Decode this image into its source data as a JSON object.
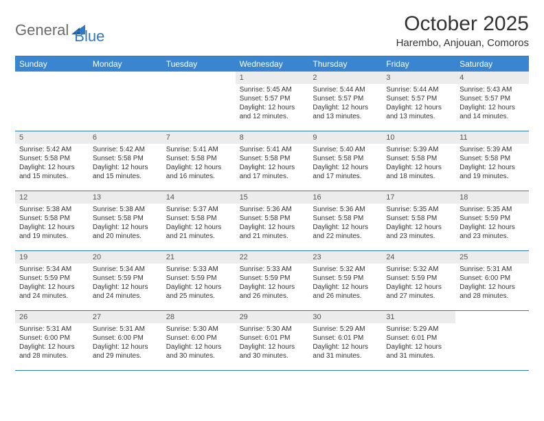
{
  "logo": {
    "word1": "General",
    "word2": "Blue"
  },
  "title": "October 2025",
  "location": "Harembo, Anjouan, Comoros",
  "colors": {
    "header_bar": "#3a85d0",
    "rule": "#2f78c3",
    "daynum_bg": "#ececec",
    "text": "#333333",
    "logo_gray": "#6a6a6a",
    "logo_blue": "#2f78c3",
    "bg": "#ffffff"
  },
  "typography": {
    "title_fontsize": 30,
    "location_fontsize": 15,
    "dow_fontsize": 12,
    "daynum_fontsize": 11,
    "body_fontsize": 10
  },
  "days_of_week": [
    "Sunday",
    "Monday",
    "Tuesday",
    "Wednesday",
    "Thursday",
    "Friday",
    "Saturday"
  ],
  "weeks": [
    [
      {
        "empty": true
      },
      {
        "empty": true
      },
      {
        "empty": true
      },
      {
        "n": "1",
        "sunrise": "Sunrise: 5:45 AM",
        "sunset": "Sunset: 5:57 PM",
        "day1": "Daylight: 12 hours",
        "day2": "and 12 minutes."
      },
      {
        "n": "2",
        "sunrise": "Sunrise: 5:44 AM",
        "sunset": "Sunset: 5:57 PM",
        "day1": "Daylight: 12 hours",
        "day2": "and 13 minutes."
      },
      {
        "n": "3",
        "sunrise": "Sunrise: 5:44 AM",
        "sunset": "Sunset: 5:57 PM",
        "day1": "Daylight: 12 hours",
        "day2": "and 13 minutes."
      },
      {
        "n": "4",
        "sunrise": "Sunrise: 5:43 AM",
        "sunset": "Sunset: 5:57 PM",
        "day1": "Daylight: 12 hours",
        "day2": "and 14 minutes."
      }
    ],
    [
      {
        "n": "5",
        "sunrise": "Sunrise: 5:42 AM",
        "sunset": "Sunset: 5:58 PM",
        "day1": "Daylight: 12 hours",
        "day2": "and 15 minutes."
      },
      {
        "n": "6",
        "sunrise": "Sunrise: 5:42 AM",
        "sunset": "Sunset: 5:58 PM",
        "day1": "Daylight: 12 hours",
        "day2": "and 15 minutes."
      },
      {
        "n": "7",
        "sunrise": "Sunrise: 5:41 AM",
        "sunset": "Sunset: 5:58 PM",
        "day1": "Daylight: 12 hours",
        "day2": "and 16 minutes."
      },
      {
        "n": "8",
        "sunrise": "Sunrise: 5:41 AM",
        "sunset": "Sunset: 5:58 PM",
        "day1": "Daylight: 12 hours",
        "day2": "and 17 minutes."
      },
      {
        "n": "9",
        "sunrise": "Sunrise: 5:40 AM",
        "sunset": "Sunset: 5:58 PM",
        "day1": "Daylight: 12 hours",
        "day2": "and 17 minutes."
      },
      {
        "n": "10",
        "sunrise": "Sunrise: 5:39 AM",
        "sunset": "Sunset: 5:58 PM",
        "day1": "Daylight: 12 hours",
        "day2": "and 18 minutes."
      },
      {
        "n": "11",
        "sunrise": "Sunrise: 5:39 AM",
        "sunset": "Sunset: 5:58 PM",
        "day1": "Daylight: 12 hours",
        "day2": "and 19 minutes."
      }
    ],
    [
      {
        "n": "12",
        "sunrise": "Sunrise: 5:38 AM",
        "sunset": "Sunset: 5:58 PM",
        "day1": "Daylight: 12 hours",
        "day2": "and 19 minutes."
      },
      {
        "n": "13",
        "sunrise": "Sunrise: 5:38 AM",
        "sunset": "Sunset: 5:58 PM",
        "day1": "Daylight: 12 hours",
        "day2": "and 20 minutes."
      },
      {
        "n": "14",
        "sunrise": "Sunrise: 5:37 AM",
        "sunset": "Sunset: 5:58 PM",
        "day1": "Daylight: 12 hours",
        "day2": "and 21 minutes."
      },
      {
        "n": "15",
        "sunrise": "Sunrise: 5:36 AM",
        "sunset": "Sunset: 5:58 PM",
        "day1": "Daylight: 12 hours",
        "day2": "and 21 minutes."
      },
      {
        "n": "16",
        "sunrise": "Sunrise: 5:36 AM",
        "sunset": "Sunset: 5:58 PM",
        "day1": "Daylight: 12 hours",
        "day2": "and 22 minutes."
      },
      {
        "n": "17",
        "sunrise": "Sunrise: 5:35 AM",
        "sunset": "Sunset: 5:58 PM",
        "day1": "Daylight: 12 hours",
        "day2": "and 23 minutes."
      },
      {
        "n": "18",
        "sunrise": "Sunrise: 5:35 AM",
        "sunset": "Sunset: 5:59 PM",
        "day1": "Daylight: 12 hours",
        "day2": "and 23 minutes."
      }
    ],
    [
      {
        "n": "19",
        "sunrise": "Sunrise: 5:34 AM",
        "sunset": "Sunset: 5:59 PM",
        "day1": "Daylight: 12 hours",
        "day2": "and 24 minutes."
      },
      {
        "n": "20",
        "sunrise": "Sunrise: 5:34 AM",
        "sunset": "Sunset: 5:59 PM",
        "day1": "Daylight: 12 hours",
        "day2": "and 24 minutes."
      },
      {
        "n": "21",
        "sunrise": "Sunrise: 5:33 AM",
        "sunset": "Sunset: 5:59 PM",
        "day1": "Daylight: 12 hours",
        "day2": "and 25 minutes."
      },
      {
        "n": "22",
        "sunrise": "Sunrise: 5:33 AM",
        "sunset": "Sunset: 5:59 PM",
        "day1": "Daylight: 12 hours",
        "day2": "and 26 minutes."
      },
      {
        "n": "23",
        "sunrise": "Sunrise: 5:32 AM",
        "sunset": "Sunset: 5:59 PM",
        "day1": "Daylight: 12 hours",
        "day2": "and 26 minutes."
      },
      {
        "n": "24",
        "sunrise": "Sunrise: 5:32 AM",
        "sunset": "Sunset: 5:59 PM",
        "day1": "Daylight: 12 hours",
        "day2": "and 27 minutes."
      },
      {
        "n": "25",
        "sunrise": "Sunrise: 5:31 AM",
        "sunset": "Sunset: 6:00 PM",
        "day1": "Daylight: 12 hours",
        "day2": "and 28 minutes."
      }
    ],
    [
      {
        "n": "26",
        "sunrise": "Sunrise: 5:31 AM",
        "sunset": "Sunset: 6:00 PM",
        "day1": "Daylight: 12 hours",
        "day2": "and 28 minutes."
      },
      {
        "n": "27",
        "sunrise": "Sunrise: 5:31 AM",
        "sunset": "Sunset: 6:00 PM",
        "day1": "Daylight: 12 hours",
        "day2": "and 29 minutes."
      },
      {
        "n": "28",
        "sunrise": "Sunrise: 5:30 AM",
        "sunset": "Sunset: 6:00 PM",
        "day1": "Daylight: 12 hours",
        "day2": "and 30 minutes."
      },
      {
        "n": "29",
        "sunrise": "Sunrise: 5:30 AM",
        "sunset": "Sunset: 6:01 PM",
        "day1": "Daylight: 12 hours",
        "day2": "and 30 minutes."
      },
      {
        "n": "30",
        "sunrise": "Sunrise: 5:29 AM",
        "sunset": "Sunset: 6:01 PM",
        "day1": "Daylight: 12 hours",
        "day2": "and 31 minutes."
      },
      {
        "n": "31",
        "sunrise": "Sunrise: 5:29 AM",
        "sunset": "Sunset: 6:01 PM",
        "day1": "Daylight: 12 hours",
        "day2": "and 31 minutes."
      },
      {
        "empty": true
      }
    ]
  ]
}
